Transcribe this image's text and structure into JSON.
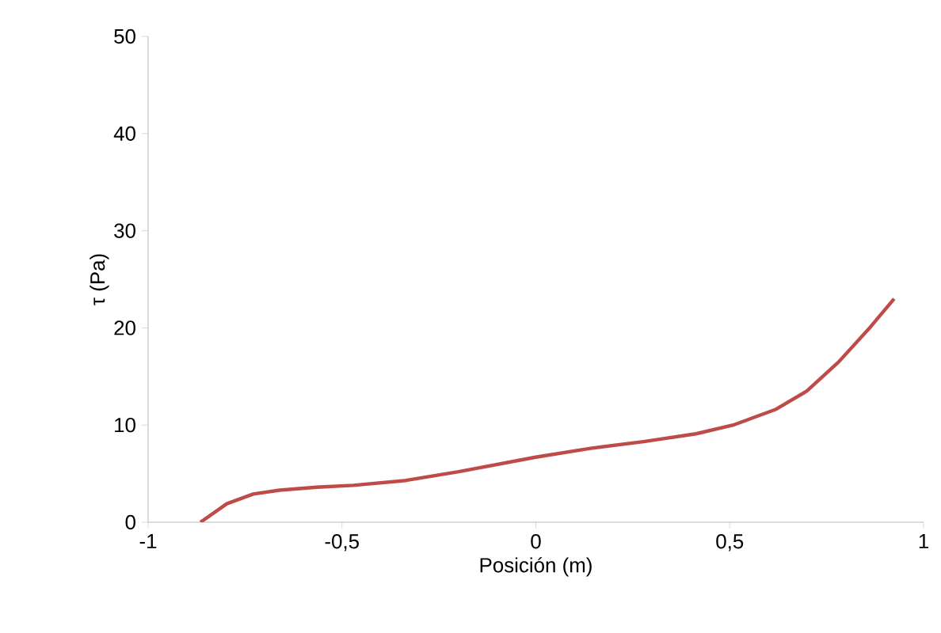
{
  "chart_data": {
    "type": "line",
    "xlabel": "Posición (m)",
    "ylabel": "τ (Pa)",
    "xlim": [
      -1,
      1
    ],
    "xticks": [
      {
        "value": -1,
        "label": "-1"
      },
      {
        "value": -0.5,
        "label": "-0,5"
      },
      {
        "value": 0,
        "label": "0"
      },
      {
        "value": 0.5,
        "label": "0,5"
      },
      {
        "value": 1,
        "label": "1"
      }
    ],
    "ylim": [
      0,
      50
    ],
    "yticks": [
      0,
      10,
      20,
      30,
      40,
      50
    ],
    "grid": false,
    "marker": "none",
    "line_style": "solid",
    "series": [
      {
        "color": "#be4b48",
        "x": [
          -0.865,
          -0.797,
          -0.729,
          -0.661,
          -0.566,
          -0.471,
          -0.335,
          -0.199,
          0,
          0.141,
          0.278,
          0.413,
          0.509,
          0.618,
          0.699,
          0.781,
          0.863,
          0.924
        ],
        "values": [
          0,
          1.9,
          2.9,
          3.3,
          3.6,
          3.8,
          4.3,
          5.2,
          6.7,
          7.6,
          8.3,
          9.1,
          10,
          11.6,
          13.5,
          16.5,
          20.1,
          23
        ]
      }
    ]
  }
}
